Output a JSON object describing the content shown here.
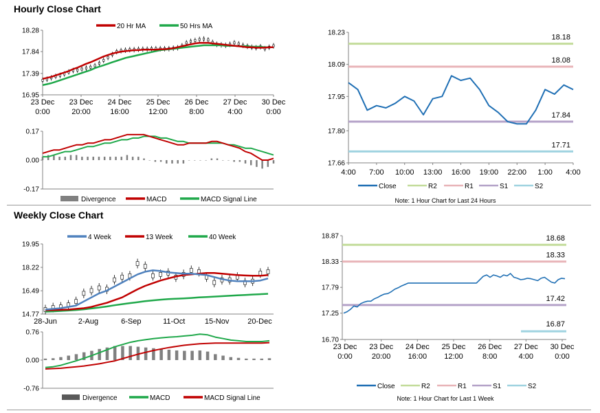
{
  "sections": {
    "hourly_title": "Hourly Close Chart",
    "weekly_title": "Weekly Close Chart"
  },
  "colors": {
    "red": "#c00000",
    "green": "#1fa84a",
    "blue": "#4f81bd",
    "close": "#1f6fb4",
    "r2": "#c3dc9a",
    "r1": "#e8b4b8",
    "s1": "#b4a2c8",
    "s2": "#9fd3e0",
    "gray": "#808080",
    "axis": "#808080"
  },
  "chart_data": [
    {
      "id": "hourly_price",
      "type": "line",
      "legend": [
        "20 Hr MA",
        "50 Hrs MA"
      ],
      "yticks": [
        "18.28",
        "17.84",
        "17.39",
        "16.95"
      ],
      "ylim": [
        16.95,
        18.28
      ],
      "xticks": [
        [
          "23 Dec",
          "0:00"
        ],
        [
          "23 Dec",
          "20:00"
        ],
        [
          "24 Dec",
          "16:00"
        ],
        [
          "25 Dec",
          "12:00"
        ],
        [
          "26 Dec",
          "8:00"
        ],
        [
          "27 Dec",
          "4:00"
        ],
        [
          "30 Dec",
          "0:00"
        ]
      ],
      "price": [
        17.25,
        17.27,
        17.3,
        17.33,
        17.35,
        17.38,
        17.42,
        17.45,
        17.46,
        17.48,
        17.5,
        17.52,
        17.55,
        17.6,
        17.66,
        17.72,
        17.78,
        17.84,
        17.86,
        17.87,
        17.88,
        17.88,
        17.89,
        17.89,
        17.89,
        17.9,
        17.9,
        17.9,
        17.9,
        17.9,
        17.91,
        17.92,
        17.96,
        18.02,
        18.05,
        18.07,
        18.09,
        18.1,
        18.08,
        18.03,
        17.99,
        17.98,
        17.97,
        17.99,
        18.02,
        18.0,
        17.97,
        17.95,
        17.93,
        17.92,
        17.94,
        17.9,
        17.93,
        17.96
      ],
      "ma20": [
        17.28,
        17.3,
        17.32,
        17.35,
        17.38,
        17.41,
        17.44,
        17.48,
        17.51,
        17.55,
        17.59,
        17.62,
        17.66,
        17.7,
        17.74,
        17.77,
        17.8,
        17.82,
        17.84,
        17.85,
        17.86,
        17.87,
        17.87,
        17.88,
        17.88,
        17.88,
        17.88,
        17.89,
        17.89,
        17.9,
        17.91,
        17.93,
        17.95,
        17.97,
        17.99,
        18.01,
        18.02,
        18.02,
        18.02,
        18.01,
        18.0,
        17.99,
        17.98,
        17.97,
        17.96,
        17.95,
        17.94,
        17.93,
        17.93,
        17.92,
        17.92,
        17.92,
        17.93,
        17.93
      ],
      "ma50": [
        17.15,
        17.17,
        17.19,
        17.22,
        17.25,
        17.28,
        17.31,
        17.34,
        17.37,
        17.4,
        17.43,
        17.46,
        17.5,
        17.53,
        17.56,
        17.59,
        17.62,
        17.65,
        17.68,
        17.71,
        17.73,
        17.75,
        17.77,
        17.79,
        17.81,
        17.83,
        17.85,
        17.87,
        17.88,
        17.89,
        17.9,
        17.91,
        17.92,
        17.93,
        17.94,
        17.95,
        17.96,
        17.97,
        17.97,
        17.97,
        17.97,
        17.97,
        17.96,
        17.96,
        17.96,
        17.95,
        17.95,
        17.95,
        17.94,
        17.94,
        17.94,
        17.93,
        17.93,
        17.93
      ]
    },
    {
      "id": "hourly_macd",
      "type": "line",
      "legend": [
        "Divergence",
        "MACD",
        "MACD Signal Line"
      ],
      "yticks": [
        "0.17",
        "0.00",
        "-0.17"
      ],
      "ylim": [
        -0.17,
        0.17
      ],
      "macd": [
        0.04,
        0.05,
        0.06,
        0.06,
        0.07,
        0.08,
        0.09,
        0.09,
        0.1,
        0.1,
        0.11,
        0.12,
        0.12,
        0.13,
        0.14,
        0.15,
        0.15,
        0.15,
        0.15,
        0.14,
        0.13,
        0.12,
        0.11,
        0.1,
        0.09,
        0.09,
        0.1,
        0.1,
        0.1,
        0.1,
        0.11,
        0.11,
        0.1,
        0.09,
        0.08,
        0.07,
        0.05,
        0.04,
        0.02,
        0.0,
        0.0,
        0.01
      ],
      "signal": [
        0.02,
        0.02,
        0.03,
        0.04,
        0.05,
        0.05,
        0.06,
        0.07,
        0.08,
        0.08,
        0.09,
        0.1,
        0.1,
        0.11,
        0.12,
        0.12,
        0.13,
        0.13,
        0.14,
        0.14,
        0.14,
        0.13,
        0.13,
        0.12,
        0.11,
        0.11,
        0.1,
        0.1,
        0.1,
        0.1,
        0.1,
        0.1,
        0.1,
        0.09,
        0.09,
        0.08,
        0.07,
        0.07,
        0.06,
        0.05,
        0.04,
        0.03
      ],
      "divergence": [
        0.02,
        0.03,
        0.03,
        0.02,
        0.02,
        0.03,
        0.03,
        0.02,
        0.02,
        0.02,
        0.02,
        0.02,
        0.02,
        0.02,
        0.02,
        0.03,
        0.02,
        0.02,
        0.01,
        0.0,
        -0.01,
        -0.01,
        -0.02,
        -0.02,
        -0.02,
        -0.02,
        0.0,
        0.0,
        0.0,
        0.0,
        0.01,
        0.01,
        0.0,
        0.0,
        -0.01,
        -0.01,
        -0.02,
        -0.03,
        -0.04,
        -0.05,
        -0.04,
        -0.02
      ]
    },
    {
      "id": "hourly_close",
      "type": "line",
      "legend": [
        "Close",
        "R2",
        "R1",
        "S1",
        "S2"
      ],
      "yticks": [
        "18.23",
        "18.09",
        "17.95",
        "17.80",
        "17.66"
      ],
      "ylim": [
        17.66,
        18.23
      ],
      "xticks": [
        "4:00",
        "7:00",
        "10:00",
        "13:00",
        "16:00",
        "19:00",
        "22:00",
        "1:00",
        "4:00"
      ],
      "levels": {
        "R2": 18.18,
        "R1": 18.08,
        "S1": 17.84,
        "S2": 17.71
      },
      "level_labels": {
        "R2": "18.18",
        "R1": "18.08",
        "S1": "17.84",
        "S2": "17.71"
      },
      "close": [
        18.01,
        17.98,
        17.89,
        17.91,
        17.9,
        17.92,
        17.95,
        17.93,
        17.87,
        17.94,
        17.95,
        18.04,
        18.02,
        18.03,
        17.98,
        17.91,
        17.88,
        17.84,
        17.83,
        17.83,
        17.89,
        17.98,
        17.96,
        18.0,
        17.98
      ],
      "note": "Note: 1 Hour Chart for Last 24 Hours"
    },
    {
      "id": "weekly_price",
      "type": "line",
      "legend": [
        "4 Week",
        "13 Week",
        "40 Week"
      ],
      "yticks": [
        "19.95",
        "18.22",
        "16.49",
        "14.77"
      ],
      "ylim": [
        14.77,
        19.95
      ],
      "xticks": [
        "28-Jun",
        "2-Aug",
        "6-Sep",
        "11-Oct",
        "15-Nov",
        "20-Dec"
      ],
      "candle_close": [
        15.1,
        15.25,
        15.3,
        15.45,
        15.7,
        16.3,
        16.5,
        16.7,
        16.6,
        17.3,
        17.5,
        17.6,
        18.5,
        18.3,
        17.6,
        17.7,
        17.8,
        17.5,
        17.7,
        18.0,
        17.9,
        17.5,
        17.1,
        17.3,
        17.3,
        17.5,
        17.1,
        17.2,
        17.8,
        17.9
      ],
      "wk4": [
        15.1,
        15.15,
        15.2,
        15.3,
        15.4,
        15.7,
        16.0,
        16.3,
        16.5,
        16.8,
        17.1,
        17.4,
        17.7,
        17.9,
        18.0,
        17.95,
        17.85,
        17.8,
        17.75,
        17.75,
        17.7,
        17.65,
        17.5,
        17.35,
        17.25,
        17.2,
        17.2,
        17.2,
        17.25,
        17.4
      ],
      "wk13": [
        15.05,
        15.06,
        15.08,
        15.1,
        15.15,
        15.2,
        15.3,
        15.45,
        15.6,
        15.8,
        16.0,
        16.3,
        16.6,
        16.85,
        17.05,
        17.25,
        17.4,
        17.55,
        17.65,
        17.7,
        17.75,
        17.8,
        17.8,
        17.75,
        17.7,
        17.65,
        17.62,
        17.6,
        17.6,
        17.65
      ],
      "wk40": [
        14.95,
        14.97,
        15.0,
        15.03,
        15.07,
        15.12,
        15.18,
        15.25,
        15.33,
        15.42,
        15.5,
        15.58,
        15.65,
        15.72,
        15.78,
        15.83,
        15.87,
        15.9,
        15.93,
        15.96,
        16.0,
        16.03,
        16.06,
        16.09,
        16.12,
        16.15,
        16.18,
        16.21,
        16.24,
        16.27
      ]
    },
    {
      "id": "weekly_macd",
      "type": "line",
      "legend": [
        "Divergence",
        "MACD",
        "MACD Signal Line"
      ],
      "yticks": [
        "0.76",
        "0.00",
        "-0.76"
      ],
      "ylim": [
        -0.76,
        0.76
      ],
      "macd": [
        -0.2,
        -0.18,
        -0.14,
        -0.08,
        -0.02,
        0.05,
        0.12,
        0.2,
        0.28,
        0.36,
        0.42,
        0.48,
        0.52,
        0.55,
        0.58,
        0.6,
        0.62,
        0.63,
        0.65,
        0.67,
        0.7,
        0.68,
        0.62,
        0.58,
        0.54,
        0.52,
        0.5,
        0.5,
        0.5,
        0.52
      ],
      "signal": [
        -0.24,
        -0.23,
        -0.22,
        -0.2,
        -0.18,
        -0.16,
        -0.13,
        -0.1,
        -0.06,
        -0.02,
        0.04,
        0.1,
        0.16,
        0.21,
        0.26,
        0.3,
        0.34,
        0.37,
        0.4,
        0.42,
        0.44,
        0.45,
        0.46,
        0.46,
        0.46,
        0.46,
        0.46,
        0.46,
        0.46,
        0.47
      ],
      "divergence": [
        0.04,
        0.05,
        0.08,
        0.12,
        0.16,
        0.21,
        0.25,
        0.3,
        0.34,
        0.38,
        0.38,
        0.38,
        0.36,
        0.34,
        0.32,
        0.3,
        0.28,
        0.26,
        0.25,
        0.25,
        0.26,
        0.23,
        0.16,
        0.12,
        0.08,
        0.06,
        0.04,
        0.04,
        0.04,
        0.05
      ]
    },
    {
      "id": "weekly_close",
      "type": "line",
      "legend": [
        "Close",
        "R2",
        "R1",
        "S1",
        "S2"
      ],
      "yticks": [
        "18.87",
        "18.33",
        "17.79",
        "17.25",
        "16.70"
      ],
      "ylim": [
        16.7,
        18.87
      ],
      "xticks": [
        [
          "23 Dec",
          "0:00"
        ],
        [
          "23 Dec",
          "20:00"
        ],
        [
          "24 Dec",
          "16:00"
        ],
        [
          "25 Dec",
          "12:00"
        ],
        [
          "26 Dec",
          "8:00"
        ],
        [
          "27 Dec",
          "4:00"
        ],
        [
          "30 Dec",
          "0:00"
        ]
      ],
      "levels": {
        "R2": 18.68,
        "R1": 18.33,
        "S1": 17.42,
        "S2": 16.87
      },
      "level_labels": {
        "R2": "18.68",
        "R1": "18.33",
        "S1": "17.42",
        "S2": "16.87"
      },
      "close": [
        17.25,
        17.28,
        17.33,
        17.4,
        17.38,
        17.45,
        17.48,
        17.5,
        17.5,
        17.55,
        17.58,
        17.62,
        17.65,
        17.66,
        17.7,
        17.75,
        17.78,
        17.82,
        17.85,
        17.88,
        17.88,
        17.88,
        17.88,
        17.88,
        17.88,
        17.88,
        17.88,
        17.88,
        17.88,
        17.88,
        17.88,
        17.88,
        17.88,
        17.88,
        17.88,
        17.88,
        17.88,
        17.88,
        17.88,
        17.88,
        17.95,
        18.02,
        18.05,
        18.0,
        18.05,
        18.03,
        18.0,
        18.05,
        18.03,
        18.08,
        18.0,
        17.98,
        17.95,
        17.96,
        17.98,
        17.97,
        17.95,
        17.93,
        17.98,
        18.0,
        17.95,
        17.9,
        17.88,
        17.95,
        17.98,
        17.97
      ],
      "note": "Note: 1 Hour Chart for Last 1 Week"
    }
  ]
}
